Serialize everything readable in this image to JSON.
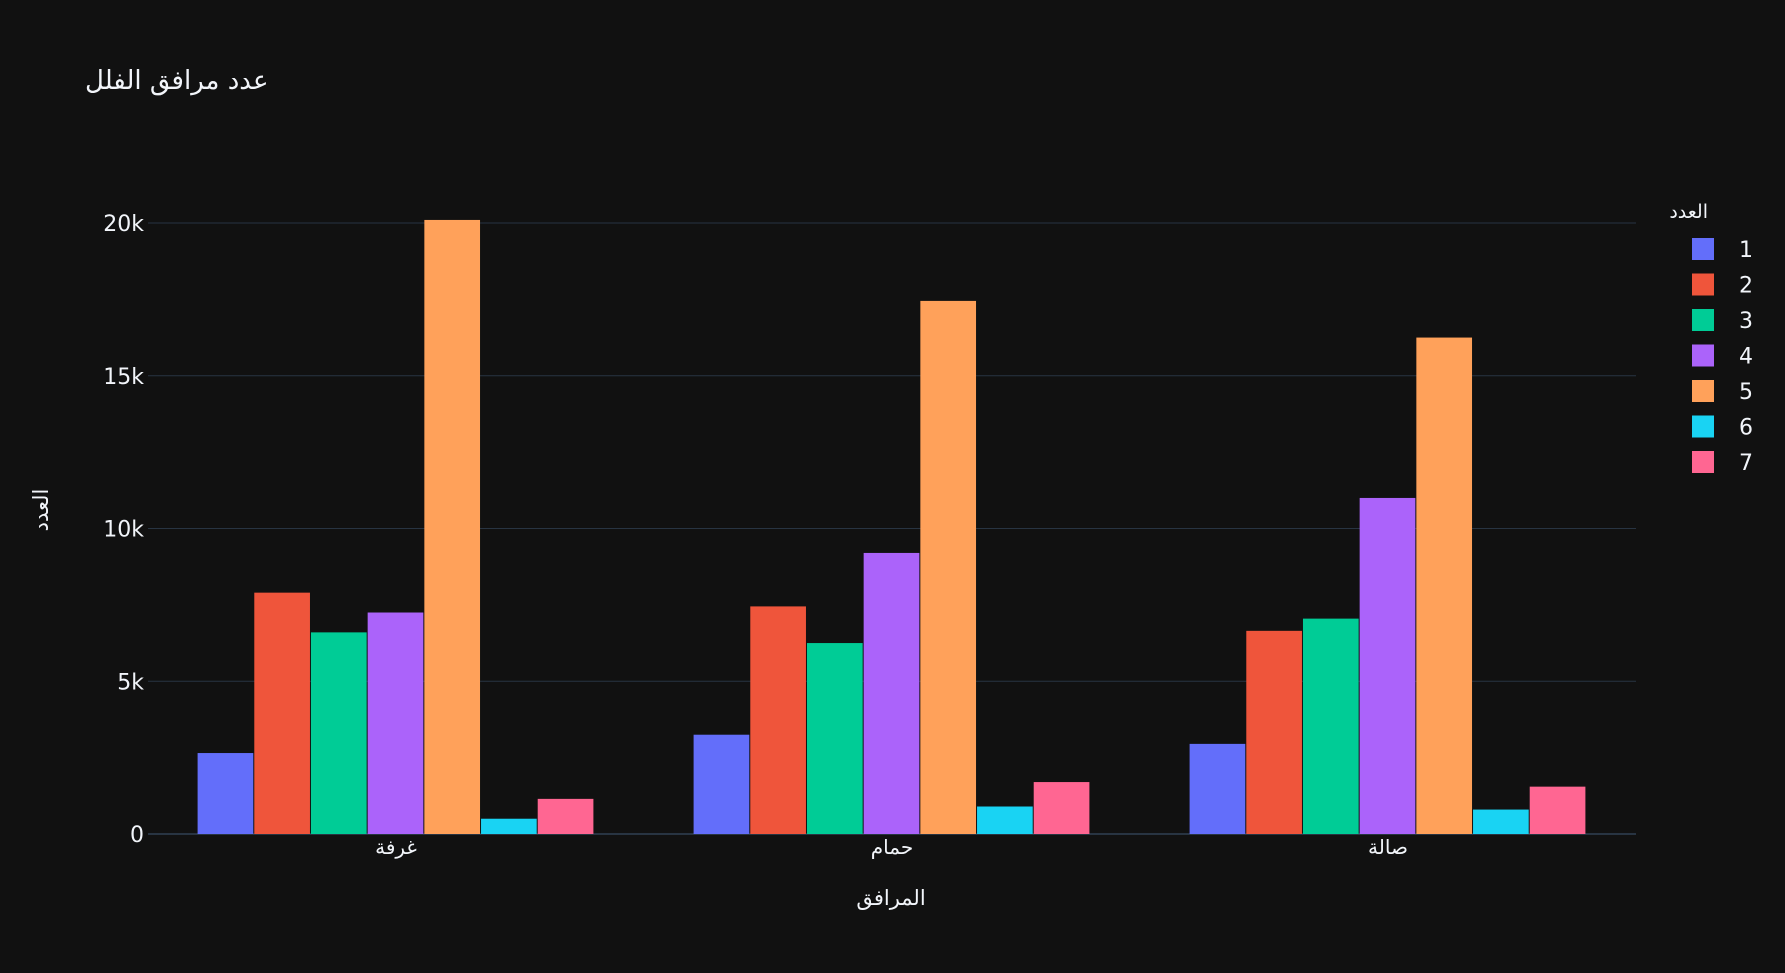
{
  "chart_data": {
    "type": "bar",
    "title": "عدد مرافق الفلل",
    "xlabel": "المرافق",
    "ylabel": "العدد",
    "categories": [
      "غرفة",
      "حمام",
      "صالة"
    ],
    "ylim": [
      0,
      21000
    ],
    "yticks": [
      0,
      5000,
      10000,
      15000,
      20000
    ],
    "ytick_labels": [
      "0",
      "5k",
      "10k",
      "15k",
      "20k"
    ],
    "grid": true,
    "legend": {
      "title": "العدد",
      "placement": "right"
    },
    "series": [
      {
        "name": "1",
        "color": "#636efa",
        "values": [
          2650,
          3250,
          2950
        ]
      },
      {
        "name": "2",
        "color": "#ef553b",
        "values": [
          7900,
          7450,
          6650
        ]
      },
      {
        "name": "3",
        "color": "#00cc96",
        "values": [
          6600,
          6250,
          7050
        ]
      },
      {
        "name": "4",
        "color": "#ab63fa",
        "values": [
          7250,
          9200,
          11000
        ]
      },
      {
        "name": "5",
        "color": "#ffa15a",
        "values": [
          20100,
          17450,
          16250
        ]
      },
      {
        "name": "6",
        "color": "#19d3f3",
        "values": [
          500,
          900,
          800
        ]
      },
      {
        "name": "7",
        "color": "#ff6692",
        "values": [
          1150,
          1700,
          1550
        ]
      }
    ]
  },
  "colors": {
    "background": "#111111",
    "grid": "#283442",
    "text": "#f2f5fa"
  }
}
